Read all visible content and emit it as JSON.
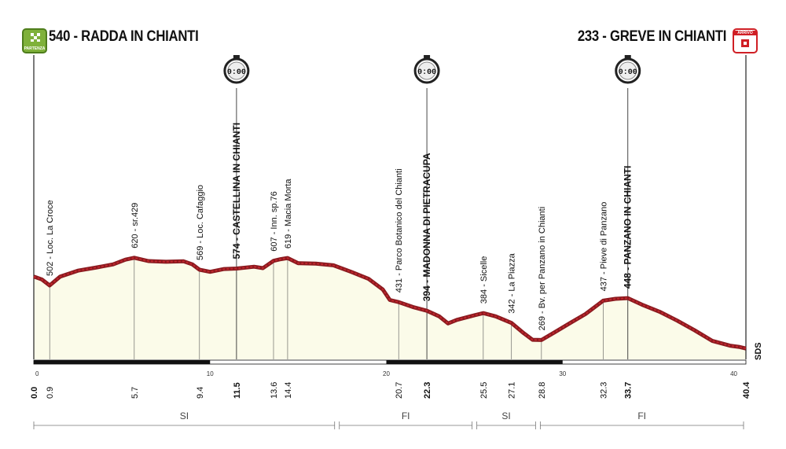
{
  "header": {
    "start": "540 - RADDA IN CHIANTI",
    "finish": "233 -  GREVE IN CHIANTI",
    "start_badge": "PARTENZA",
    "finish_badge": "ARRIVO"
  },
  "intermediate_time": "0:00",
  "waypoints": [
    {
      "km": 0.9,
      "label": "502 - Loc. La Croce",
      "km_label": "0.9",
      "bold": false
    },
    {
      "km": 5.7,
      "label": "620 - sr.429",
      "km_label": "5.7",
      "bold": false
    },
    {
      "km": 9.4,
      "label": "569 - Loc. Cafaggio",
      "km_label": "9.4",
      "bold": false
    },
    {
      "km": 11.5,
      "label": "574 - CASTELLINA IN CHIANTI",
      "km_label": "11.5",
      "bold": true
    },
    {
      "km": 13.6,
      "label": "607 - Inn. sp.76",
      "km_label": "13.6",
      "bold": false
    },
    {
      "km": 14.4,
      "label": "619 - Macia Morta",
      "km_label": "14.4",
      "bold": false
    },
    {
      "km": 20.7,
      "label": "431 - Parco Botanico del Chianti",
      "km_label": "20.7",
      "bold": false
    },
    {
      "km": 22.3,
      "label": "394 - MADONNA DI PIETRACUPA",
      "km_label": "22.3",
      "bold": true
    },
    {
      "km": 25.5,
      "label": "384 - Sicelle",
      "km_label": "25.5",
      "bold": false
    },
    {
      "km": 27.1,
      "label": "342 - La Piazza",
      "km_label": "27.1",
      "bold": false
    },
    {
      "km": 28.8,
      "label": "269 - Bv. per Panzano in Chianti",
      "km_label": "28.8",
      "bold": false
    },
    {
      "km": 32.3,
      "label": "437 - Pieve di Panzano",
      "km_label": "32.3",
      "bold": false
    },
    {
      "km": 33.7,
      "label": "448 - PANZANO IN CHIANTI",
      "km_label": "33.7",
      "bold": true
    }
  ],
  "endpoints": [
    {
      "km": 0.0,
      "km_label": "0.0"
    },
    {
      "km": 40.4,
      "km_label": "40.4"
    }
  ],
  "km_ticks": [
    {
      "km": 0,
      "label": "0"
    },
    {
      "km": 10,
      "label": "10"
    },
    {
      "km": 20,
      "label": "20"
    },
    {
      "km": 30,
      "label": "30"
    },
    {
      "km": 40,
      "label": "40"
    }
  ],
  "provinces": [
    {
      "label": "SI",
      "from_km": 0.0,
      "to_km": 17.2
    },
    {
      "label": "FI",
      "from_km": 17.2,
      "to_km": 25.0
    },
    {
      "label": "SI",
      "from_km": 25.0,
      "to_km": 28.6
    },
    {
      "label": "FI",
      "from_km": 28.6,
      "to_km": 40.4
    }
  ],
  "timecheck_km": [
    11.5,
    22.3,
    33.7
  ],
  "logo": "SDS",
  "profile": [
    [
      0.0,
      540
    ],
    [
      0.45,
      528
    ],
    [
      0.9,
      502
    ],
    [
      1.5,
      540
    ],
    [
      2.5,
      565
    ],
    [
      3.5,
      578
    ],
    [
      4.5,
      592
    ],
    [
      5.2,
      612
    ],
    [
      5.7,
      620
    ],
    [
      6.5,
      606
    ],
    [
      7.5,
      603
    ],
    [
      8.5,
      605
    ],
    [
      9.0,
      592
    ],
    [
      9.4,
      569
    ],
    [
      10.0,
      560
    ],
    [
      10.8,
      572
    ],
    [
      11.5,
      574
    ],
    [
      12.5,
      582
    ],
    [
      13.0,
      576
    ],
    [
      13.6,
      607
    ],
    [
      14.0,
      614
    ],
    [
      14.4,
      619
    ],
    [
      15.0,
      597
    ],
    [
      16.0,
      595
    ],
    [
      17.0,
      588
    ],
    [
      18.0,
      560
    ],
    [
      19.0,
      530
    ],
    [
      19.8,
      485
    ],
    [
      20.2,
      440
    ],
    [
      20.7,
      431
    ],
    [
      21.5,
      410
    ],
    [
      22.3,
      394
    ],
    [
      23.0,
      370
    ],
    [
      23.5,
      340
    ],
    [
      24.0,
      355
    ],
    [
      25.0,
      375
    ],
    [
      25.5,
      384
    ],
    [
      26.2,
      370
    ],
    [
      27.1,
      342
    ],
    [
      27.8,
      298
    ],
    [
      28.3,
      270
    ],
    [
      28.8,
      269
    ],
    [
      29.5,
      300
    ],
    [
      30.5,
      345
    ],
    [
      31.3,
      380
    ],
    [
      32.3,
      437
    ],
    [
      33.0,
      445
    ],
    [
      33.7,
      448
    ],
    [
      34.5,
      420
    ],
    [
      35.5,
      390
    ],
    [
      36.5,
      352
    ],
    [
      37.5,
      310
    ],
    [
      38.5,
      265
    ],
    [
      39.5,
      245
    ],
    [
      40.0,
      240
    ],
    [
      40.4,
      233
    ]
  ]
}
